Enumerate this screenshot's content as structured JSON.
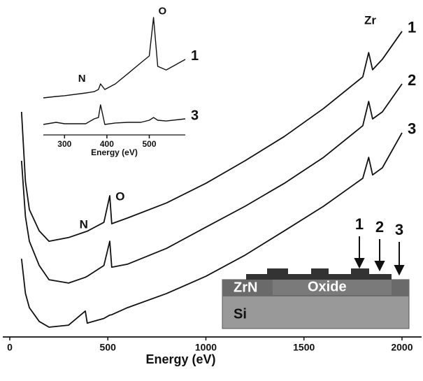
{
  "chart_data": [
    {
      "type": "line",
      "xlabel": "Energy (eV)",
      "x": [
        60,
        80,
        100,
        150,
        200,
        300,
        385,
        395,
        480,
        510,
        520,
        600,
        800,
        1000,
        1200,
        1400,
        1600,
        1800,
        1830,
        1850,
        1900,
        2000
      ],
      "series": [
        {
          "name": "1",
          "color": "#111111",
          "values": [
            66.8,
            46.1,
            37.8,
            31.5,
            28.4,
            29.5,
            31.2,
            31.4,
            34.0,
            41.9,
            33.6,
            35.3,
            39.8,
            45.6,
            52.3,
            59.5,
            67.8,
            77.2,
            84.4,
            79.3,
            82.4,
            90.7
          ]
        },
        {
          "name": "2",
          "color": "#111111",
          "values": [
            52.3,
            35.7,
            28.4,
            21.2,
            17.0,
            16.0,
            17.7,
            18.0,
            21.2,
            28.4,
            20.7,
            21.6,
            26.3,
            32.6,
            38.8,
            45.6,
            53.3,
            62.7,
            69.9,
            64.7,
            66.8,
            75.1
          ]
        },
        {
          "name": "3",
          "color": "#111111",
          "values": [
            23.2,
            12.9,
            8.7,
            4.6,
            2.9,
            3.5,
            7.7,
            4.1,
            5.5,
            6.5,
            6.6,
            8.7,
            12.9,
            18.0,
            24.3,
            31.5,
            38.8,
            47.1,
            53.3,
            48.1,
            50.2,
            60.6
          ]
        }
      ],
      "xlim": [
        0,
        2100
      ],
      "xticks": [
        0,
        500,
        1000,
        1500,
        2000
      ],
      "ylim": [
        0,
        100
      ],
      "annotations": [
        {
          "text": "N",
          "x": 377,
          "y": 33.2
        },
        {
          "text": "O",
          "x": 563,
          "y": 41.5
        },
        {
          "text": "Zr",
          "x": 1838,
          "y": 93.8
        }
      ]
    },
    {
      "type": "line",
      "xlabel": "Energy (eV)",
      "x": [
        250,
        280,
        300,
        350,
        370,
        380,
        385,
        395,
        420,
        450,
        480,
        500,
        510,
        520,
        540,
        585
      ],
      "series": [
        {
          "name": "1",
          "color": "#111111",
          "values": [
            29.8,
            30.9,
            31.5,
            33.7,
            34.8,
            36.5,
            41.0,
            36.5,
            41.0,
            49.4,
            57.9,
            63.5,
            94.4,
            55.1,
            52.2,
            60.7
          ]
        },
        {
          "name": "3",
          "color": "#111111",
          "values": [
            8.4,
            10.1,
            9.0,
            9.0,
            12.9,
            14.0,
            24.2,
            8.4,
            9.6,
            10.1,
            10.1,
            11.8,
            14.0,
            11.8,
            11.2,
            12.9
          ]
        }
      ],
      "xlim": [
        250,
        585
      ],
      "xticks": [
        300,
        400,
        500
      ],
      "ylim": [
        0,
        100
      ],
      "annotations": [
        {
          "text": "N",
          "x": 341,
          "y": 44.9
        },
        {
          "text": "O",
          "x": 531,
          "y": 99
        }
      ]
    }
  ],
  "schematic": {
    "layers": [
      "ZrN",
      "Oxide",
      "Si"
    ],
    "arrows": [
      "1",
      "2",
      "3"
    ]
  }
}
